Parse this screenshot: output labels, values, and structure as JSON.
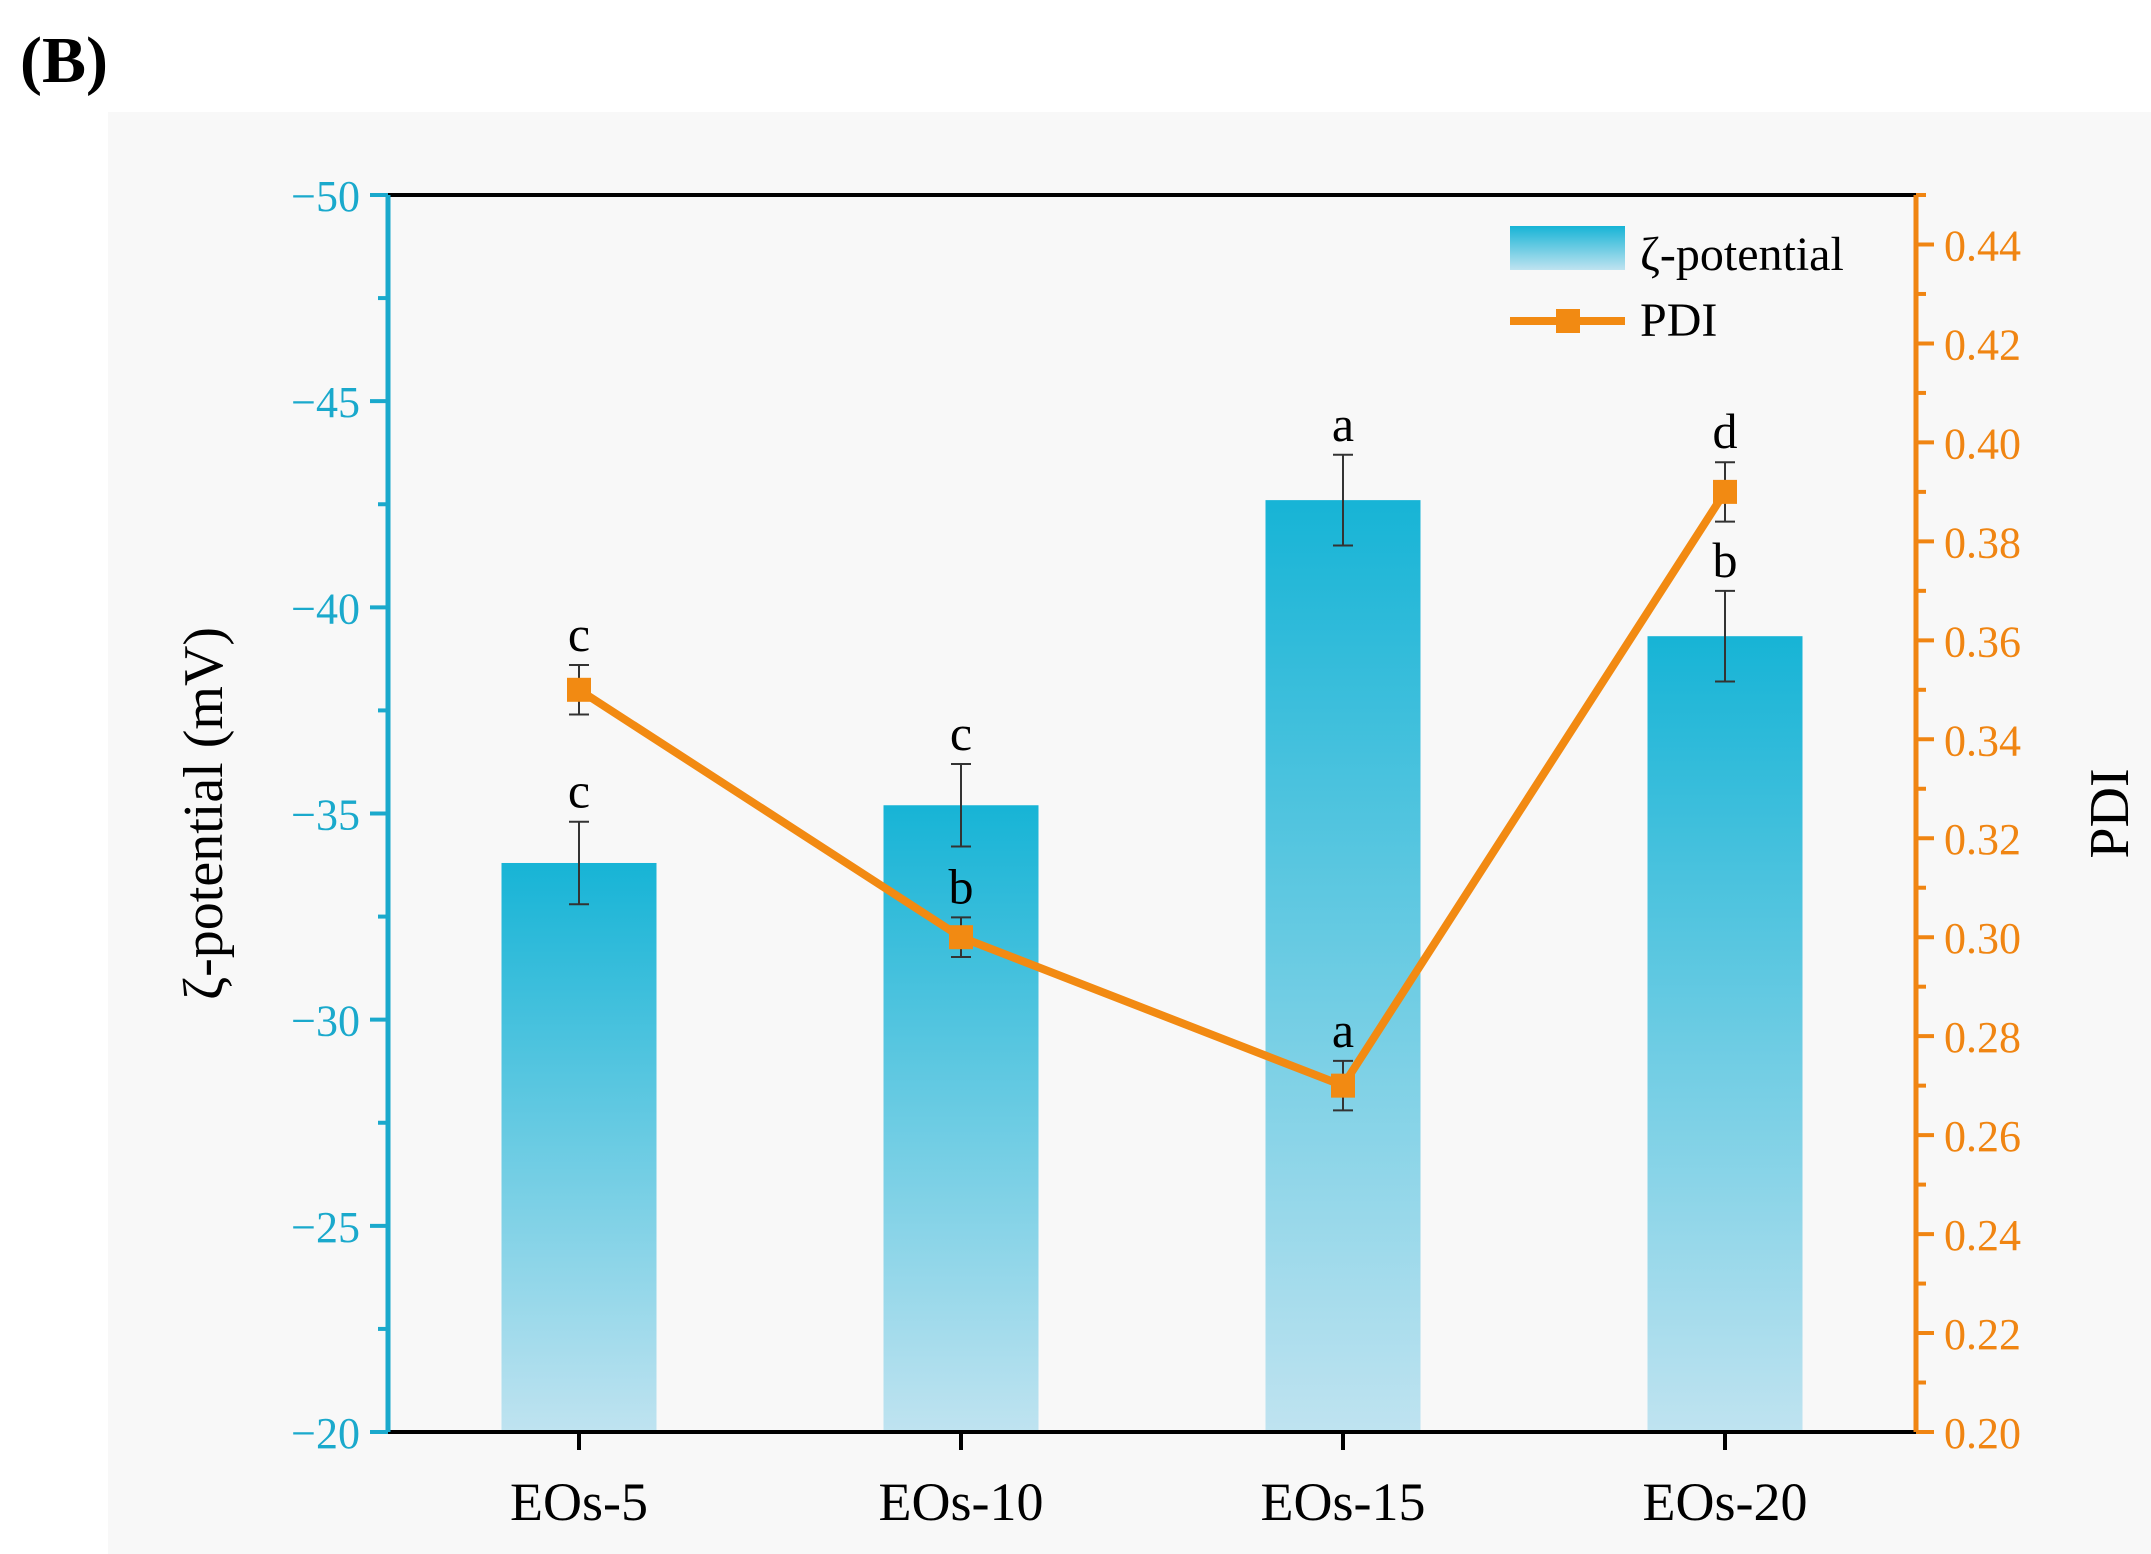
{
  "panel_label": "(B)",
  "colors": {
    "bar_top": "#17b4d6",
    "bar_bottom": "#bfe3f0",
    "left_axis": "#1aa9cc",
    "right_axis": "#f08512",
    "line": "#f28a12",
    "frame": "#000000",
    "background": "#f8f8f8"
  },
  "chart_data": {
    "type": "bar",
    "categories": [
      "EOs-5",
      "EOs-10",
      "EOs-15",
      "EOs-20"
    ],
    "left_axis": {
      "label": "ζ-potential (mV)",
      "ylim": [
        -20,
        -50
      ],
      "ticks": [
        -50,
        -45,
        -40,
        -35,
        -30,
        -25,
        -20
      ],
      "tick_labels": [
        "−50",
        "−45",
        "−40",
        "−35",
        "−30",
        "−25",
        "−20"
      ]
    },
    "right_axis": {
      "label": "PDI",
      "ylim": [
        0.2,
        0.45
      ],
      "ticks": [
        0.2,
        0.22,
        0.24,
        0.26,
        0.28,
        0.3,
        0.32,
        0.34,
        0.36,
        0.38,
        0.4,
        0.42,
        0.44
      ],
      "tick_labels": [
        "0.20",
        "0.22",
        "0.24",
        "0.26",
        "0.28",
        "0.30",
        "0.32",
        "0.34",
        "0.36",
        "0.38",
        "0.40",
        "0.42",
        "0.44"
      ]
    },
    "series": [
      {
        "name": "ζ-potential",
        "type": "bar",
        "axis": "left",
        "values": [
          -33.8,
          -35.2,
          -42.6,
          -39.3
        ],
        "errors": [
          1.0,
          1.0,
          1.1,
          1.1
        ],
        "letters": [
          "c",
          "c",
          "a",
          "b"
        ]
      },
      {
        "name": "PDI",
        "type": "line",
        "axis": "right",
        "values": [
          0.35,
          0.3,
          0.27,
          0.39
        ],
        "errors": [
          0.005,
          0.004,
          0.005,
          0.006
        ],
        "letters": [
          "c",
          "b",
          "a",
          "d"
        ]
      }
    ],
    "legend": {
      "position": "top-right",
      "entries": [
        "ζ-potential",
        "PDI"
      ]
    }
  }
}
